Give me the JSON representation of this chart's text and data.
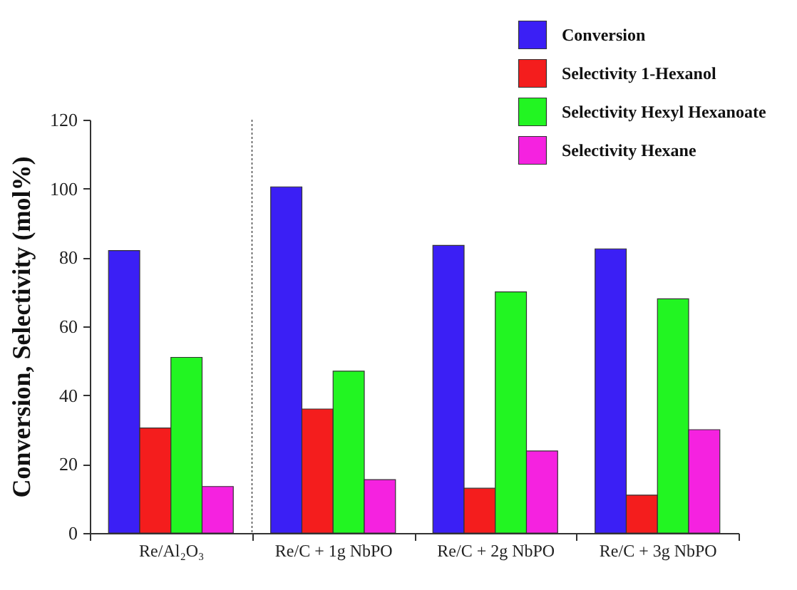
{
  "chart_data": {
    "type": "bar",
    "ylabel": "Conversion, Selectivity (mol%)",
    "categories": [
      "Re/Al₂O₃",
      "Re/C + 1g NbPO",
      "Re/C + 2g NbPO",
      "Re/C + 3g NbPO"
    ],
    "series": [
      {
        "name": "Conversion",
        "color": "#3b1ff5",
        "values": [
          82,
          100.5,
          83.5,
          82.5
        ]
      },
      {
        "name": "Selectivity 1-Hexanol",
        "color": "#f41d1d",
        "values": [
          30.5,
          36,
          13,
          11
        ]
      },
      {
        "name": "Selectivity Hexyl Hexanoate",
        "color": "#22f522",
        "values": [
          51,
          47,
          70,
          68
        ]
      },
      {
        "name": "Selectivity Hexane",
        "color": "#f522e0",
        "values": [
          13.5,
          15.5,
          23.8,
          30
        ]
      }
    ],
    "ylim": [
      0,
      120
    ],
    "yticks": [
      0,
      20,
      40,
      60,
      80,
      100,
      120
    ],
    "grid": false,
    "legend": "top right"
  }
}
